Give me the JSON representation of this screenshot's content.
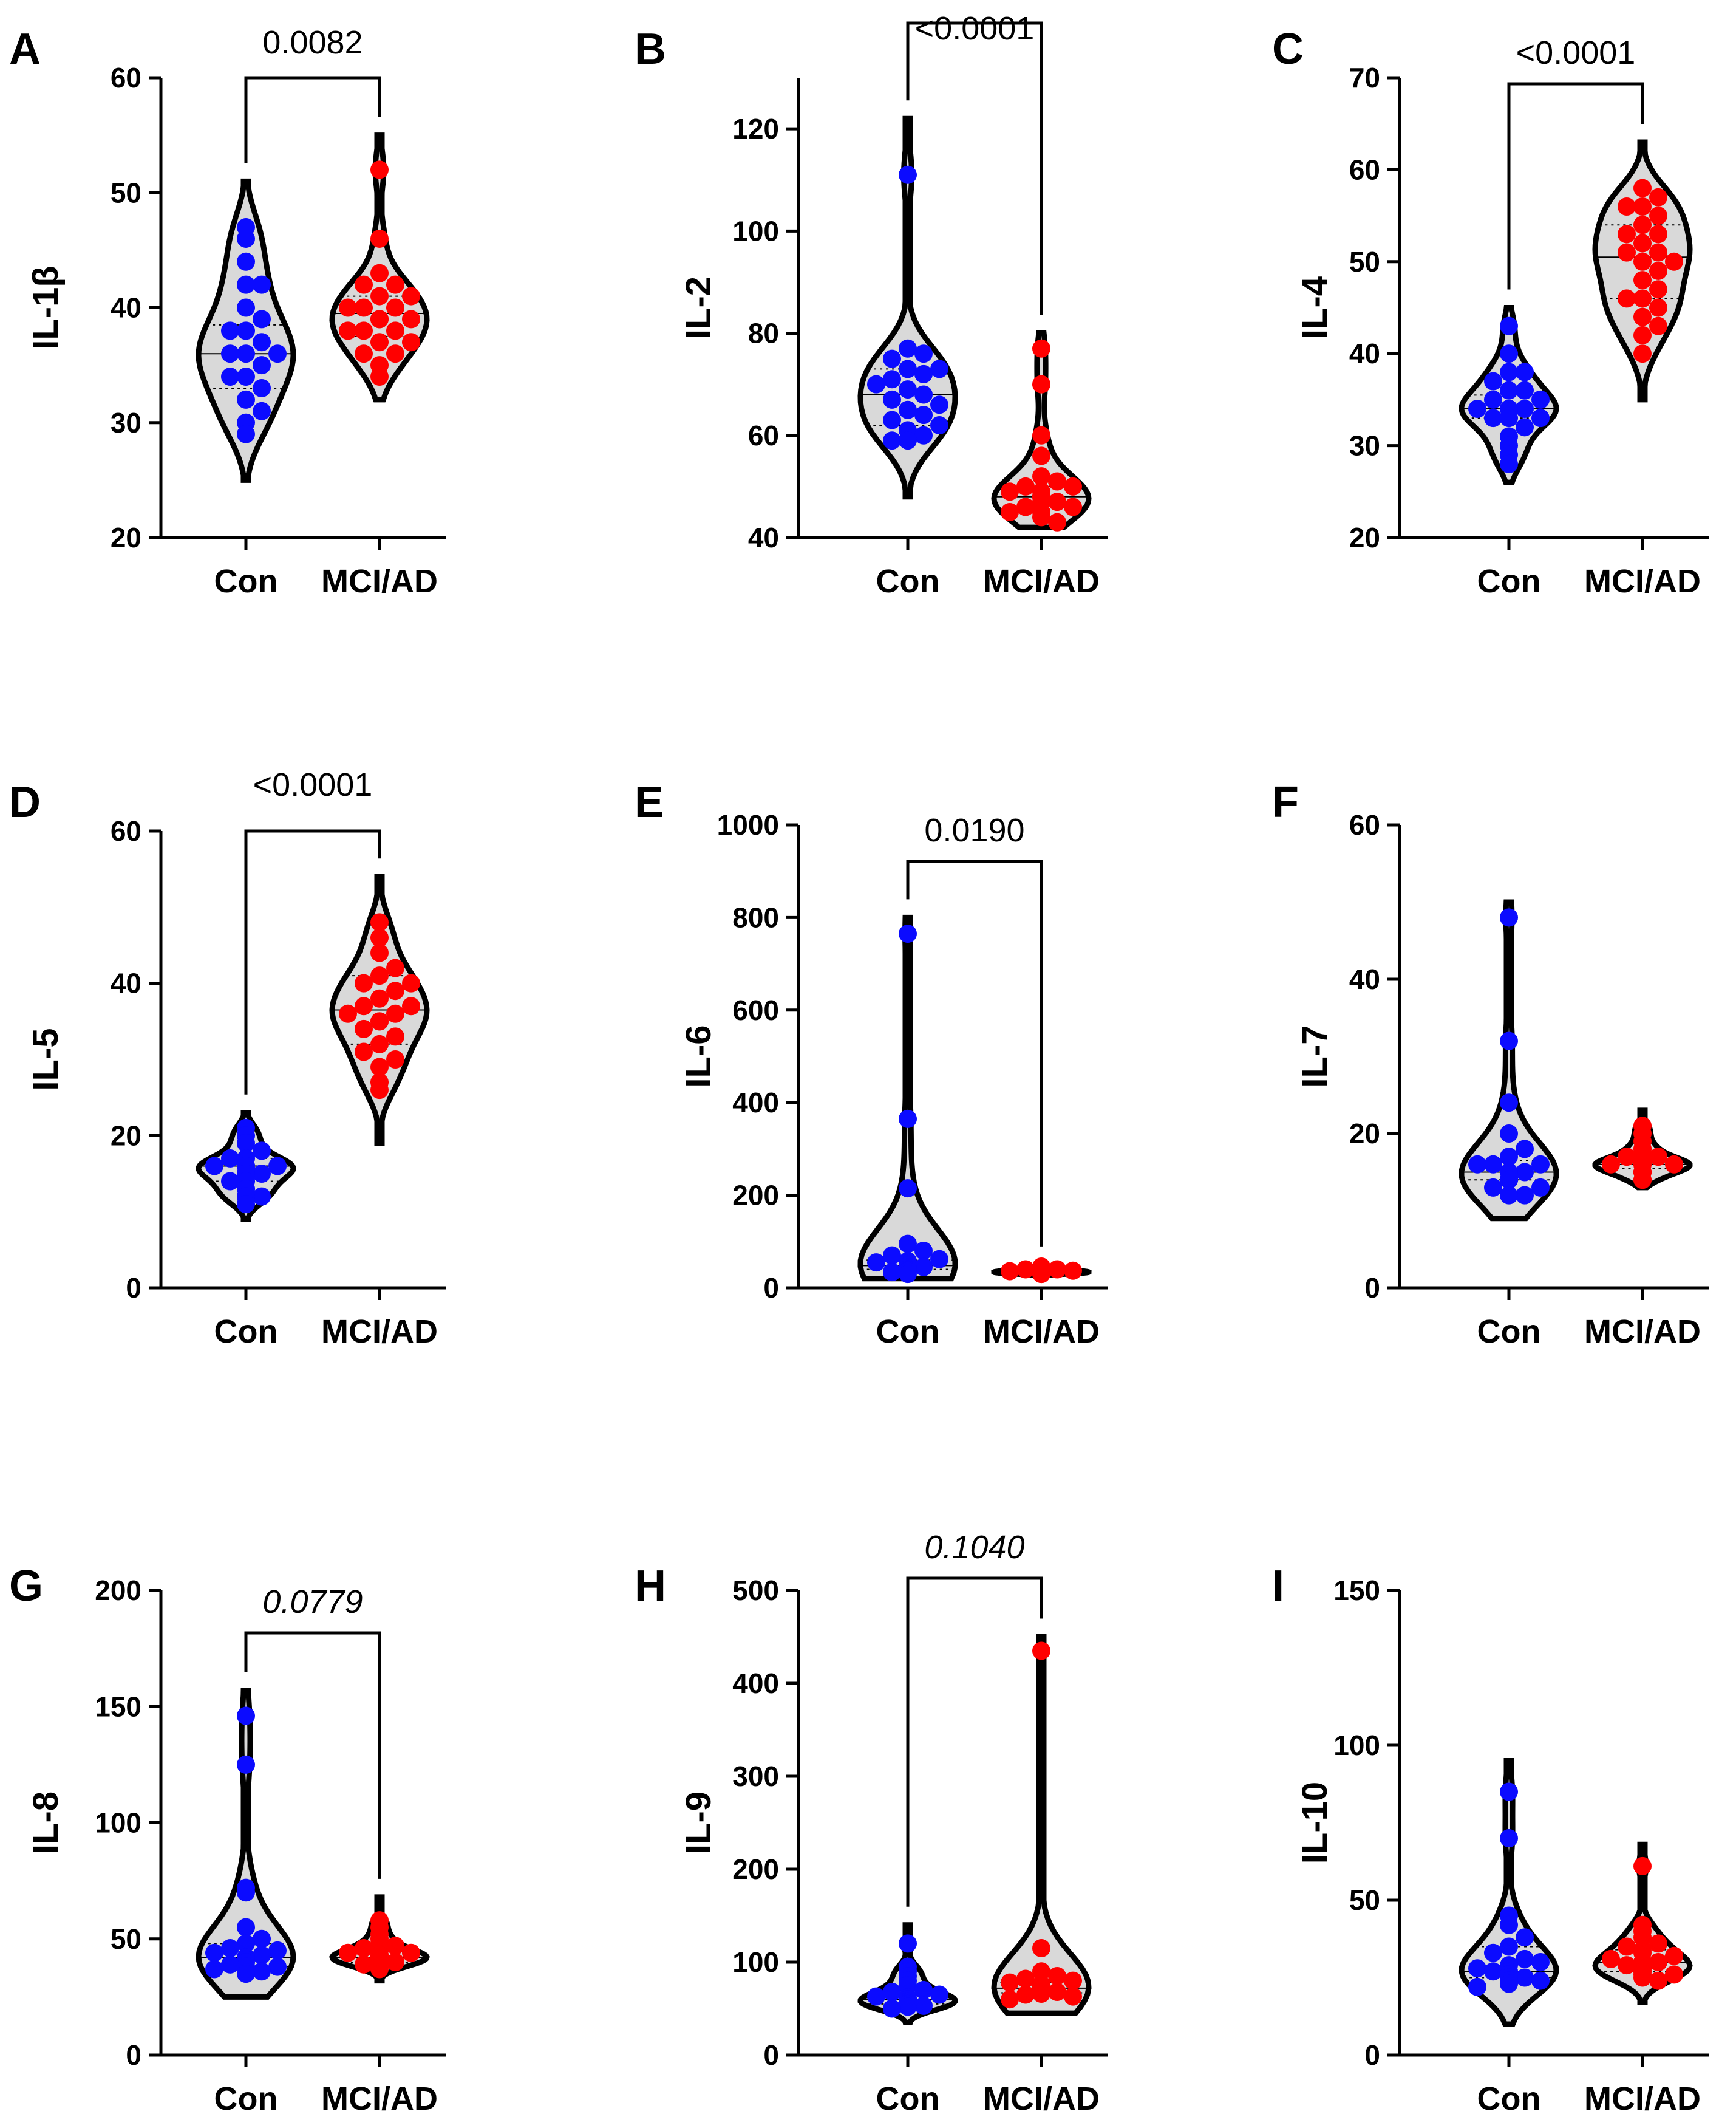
{
  "colors": {
    "con": "#0b0bff",
    "mci": "#ff0000",
    "violin_fill_con": "#d9d9d9",
    "violin_fill_mci": "#f2f2f2",
    "line": "#000000"
  },
  "chart_data": [
    {
      "type": "violin",
      "letter": "A",
      "ylabel": "IL-1β",
      "categories": [
        "Con",
        "MCI/AD"
      ],
      "ylim": [
        20,
        60
      ],
      "yticks": [
        20,
        30,
        40,
        50,
        60
      ],
      "pvalue": "0.0082",
      "pvalue_italic": false,
      "series": [
        {
          "name": "Con",
          "values": [
            47,
            46,
            44,
            42,
            42,
            40,
            39,
            38,
            38,
            37,
            36,
            36,
            36,
            35,
            34,
            34,
            33,
            32,
            31,
            30,
            29
          ],
          "median": 36,
          "q1": 33,
          "q3": 38.5,
          "min": 25,
          "max": 51
        },
        {
          "name": "MCI/AD",
          "values": [
            52,
            46,
            43,
            42,
            42,
            41,
            41,
            40,
            40,
            40,
            39,
            39,
            39,
            38,
            38,
            38,
            37,
            37,
            36,
            36,
            35,
            34
          ],
          "median": 39.5,
          "q1": 37.5,
          "q3": 41,
          "min": 32,
          "max": 55
        }
      ]
    },
    {
      "type": "violin",
      "letter": "B",
      "ylabel": "IL-2",
      "categories": [
        "Con",
        "MCI/AD"
      ],
      "ylim": [
        40,
        130
      ],
      "yticks": [
        40,
        60,
        80,
        100,
        120
      ],
      "pvalue": "<0.0001",
      "pvalue_italic": false,
      "series": [
        {
          "name": "Con",
          "values": [
            111,
            77,
            76,
            75,
            73,
            73,
            72,
            71,
            70,
            69,
            68,
            67,
            66,
            65,
            64,
            63,
            62,
            61,
            60,
            59,
            59
          ],
          "median": 68,
          "q1": 62,
          "q3": 73,
          "min": 48,
          "max": 122
        },
        {
          "name": "MCI/AD",
          "values": [
            77,
            70,
            60,
            56,
            52,
            51,
            50,
            50,
            49,
            49,
            48,
            48,
            48,
            47,
            47,
            46,
            46,
            45,
            45,
            44,
            43
          ],
          "median": 48,
          "q1": 46,
          "q3": 50,
          "min": 42,
          "max": 80
        }
      ]
    },
    {
      "type": "violin",
      "letter": "C",
      "ylabel": "IL-4",
      "categories": [
        "Con",
        "MCI/AD"
      ],
      "ylim": [
        20,
        70
      ],
      "yticks": [
        20,
        30,
        40,
        50,
        60,
        70
      ],
      "pvalue": "<0.0001",
      "pvalue_italic": false,
      "series": [
        {
          "name": "Con",
          "values": [
            43,
            40,
            38,
            38,
            37,
            36,
            36,
            35,
            35,
            34,
            34,
            34,
            34,
            33,
            33,
            33,
            32,
            31,
            30,
            29,
            28
          ],
          "median": 34,
          "q1": 33,
          "q3": 35.5,
          "min": 26,
          "max": 45
        },
        {
          "name": "MCI/AD",
          "values": [
            58,
            57,
            56,
            56,
            55,
            54,
            53,
            53,
            52,
            51,
            51,
            50,
            50,
            49,
            48,
            47,
            46,
            46,
            45,
            44,
            43,
            42,
            40
          ],
          "median": 50.5,
          "q1": 46,
          "q3": 54,
          "min": 35,
          "max": 63
        }
      ]
    },
    {
      "type": "violin",
      "letter": "D",
      "ylabel": "IL-5",
      "categories": [
        "Con",
        "MCI/AD"
      ],
      "ylim": [
        0,
        60
      ],
      "yticks": [
        0,
        20,
        40,
        60
      ],
      "pvalue": "<0.0001",
      "pvalue_italic": false,
      "series": [
        {
          "name": "Con",
          "values": [
            21,
            20,
            19,
            18,
            17,
            17,
            16,
            16,
            16,
            16,
            16,
            15,
            15,
            15,
            14,
            14,
            13,
            13,
            12,
            12,
            11
          ],
          "median": 16,
          "q1": 14,
          "q3": 17,
          "min": 9,
          "max": 23
        },
        {
          "name": "MCI/AD",
          "values": [
            48,
            46,
            44,
            42,
            41,
            40,
            40,
            39,
            38,
            37,
            37,
            36,
            36,
            35,
            35,
            34,
            33,
            32,
            31,
            30,
            29,
            27,
            26
          ],
          "median": 36.5,
          "q1": 32,
          "q3": 41,
          "min": 19,
          "max": 54
        }
      ]
    },
    {
      "type": "violin",
      "letter": "E",
      "ylabel": "IL-6",
      "categories": [
        "Con",
        "MCI/AD"
      ],
      "ylim": [
        0,
        1000
      ],
      "yticks": [
        0,
        200,
        400,
        600,
        800,
        1000
      ],
      "pvalue": "0.0190",
      "pvalue_italic": false,
      "series": [
        {
          "name": "Con",
          "values": [
            765,
            365,
            215,
            95,
            80,
            70,
            62,
            58,
            55,
            52,
            50,
            48,
            47,
            45,
            44,
            42,
            40,
            38,
            36,
            34,
            30
          ],
          "median": 48,
          "q1": 40,
          "q3": 60,
          "min": 20,
          "max": 800
        },
        {
          "name": "MCI/AD",
          "values": [
            46,
            44,
            42,
            40,
            40,
            38,
            38,
            37,
            36,
            36,
            35,
            35,
            34,
            34,
            33,
            33,
            32,
            32,
            31,
            30,
            30
          ],
          "median": 35,
          "q1": 32,
          "q3": 38,
          "min": 28,
          "max": 50
        }
      ]
    },
    {
      "type": "violin",
      "letter": "F",
      "ylabel": "IL-7",
      "categories": [
        "Con",
        "MCI/AD"
      ],
      "ylim": [
        0,
        60
      ],
      "yticks": [
        0,
        20,
        40,
        60
      ],
      "pvalue": "",
      "pvalue_italic": false,
      "series": [
        {
          "name": "Con",
          "values": [
            48,
            32,
            24,
            20,
            18,
            17,
            16,
            16,
            16,
            15,
            15,
            15,
            15,
            14,
            14,
            14,
            14,
            13,
            13,
            12,
            12
          ],
          "median": 15,
          "q1": 14,
          "q3": 16.5,
          "min": 9,
          "max": 50
        },
        {
          "name": "MCI/AD",
          "values": [
            21,
            20,
            19,
            18,
            18,
            17,
            17,
            17,
            16,
            16,
            16,
            16,
            16,
            16,
            16,
            16,
            15,
            15,
            15,
            15,
            14,
            14
          ],
          "median": 16,
          "q1": 15.5,
          "q3": 17,
          "min": 13,
          "max": 23
        }
      ]
    },
    {
      "type": "violin",
      "letter": "G",
      "ylabel": "IL-8",
      "categories": [
        "Con",
        "MCI/AD"
      ],
      "ylim": [
        0,
        200
      ],
      "yticks": [
        0,
        50,
        100,
        150,
        200
      ],
      "pvalue": "0.0779",
      "pvalue_italic": true,
      "series": [
        {
          "name": "Con",
          "values": [
            146,
            125,
            72,
            70,
            55,
            50,
            48,
            46,
            45,
            44,
            43,
            42,
            42,
            41,
            40,
            39,
            38,
            38,
            37,
            36,
            35
          ],
          "median": 42,
          "q1": 38,
          "q3": 48,
          "min": 25,
          "max": 157
        },
        {
          "name": "MCI/AD",
          "values": [
            58,
            55,
            52,
            50,
            48,
            47,
            46,
            45,
            44,
            44,
            43,
            43,
            42,
            42,
            42,
            41,
            41,
            40,
            40,
            39,
            38,
            37
          ],
          "median": 42,
          "q1": 40,
          "q3": 46,
          "min": 32,
          "max": 68
        }
      ]
    },
    {
      "type": "violin",
      "letter": "H",
      "ylabel": "IL-9",
      "categories": [
        "Con",
        "MCI/AD"
      ],
      "ylim": [
        0,
        500
      ],
      "yticks": [
        0,
        100,
        200,
        300,
        400,
        500
      ],
      "pvalue": "0.1040",
      "pvalue_italic": true,
      "series": [
        {
          "name": "Con",
          "values": [
            120,
            95,
            90,
            85,
            80,
            75,
            70,
            68,
            65,
            63,
            62,
            60,
            60,
            58,
            57,
            56,
            55,
            54,
            53,
            52,
            50
          ],
          "median": 60,
          "q1": 55,
          "q3": 72,
          "min": 35,
          "max": 140
        },
        {
          "name": "MCI/AD",
          "values": [
            435,
            115,
            90,
            85,
            82,
            80,
            78,
            76,
            75,
            74,
            73,
            72,
            71,
            70,
            70,
            69,
            68,
            67,
            66,
            65,
            63,
            60
          ],
          "median": 72,
          "q1": 67,
          "q3": 78,
          "min": 45,
          "max": 450
        }
      ]
    },
    {
      "type": "violin",
      "letter": "I",
      "ylabel": "IL-10",
      "categories": [
        "Con",
        "MCI/AD"
      ],
      "ylim": [
        0,
        150
      ],
      "yticks": [
        0,
        50,
        100,
        150
      ],
      "pvalue": "",
      "pvalue_italic": false,
      "series": [
        {
          "name": "Con",
          "values": [
            85,
            70,
            45,
            42,
            38,
            35,
            33,
            31,
            30,
            29,
            28,
            27,
            27,
            26,
            26,
            25,
            25,
            24,
            24,
            23,
            22
          ],
          "median": 27,
          "q1": 25,
          "q3": 35,
          "min": 10,
          "max": 95
        },
        {
          "name": "MCI/AD",
          "values": [
            61,
            42,
            40,
            38,
            36,
            35,
            34,
            33,
            32,
            31,
            30,
            30,
            29,
            29,
            28,
            28,
            27,
            27,
            26,
            26,
            25,
            24
          ],
          "median": 30,
          "q1": 27,
          "q3": 34,
          "min": 17,
          "max": 68
        }
      ]
    }
  ]
}
